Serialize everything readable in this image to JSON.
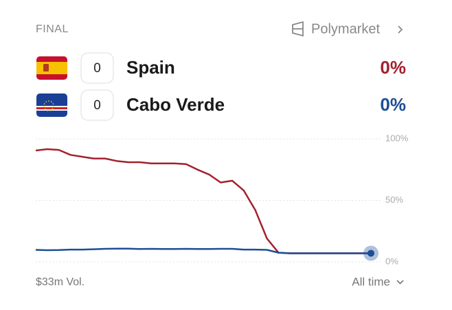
{
  "header": {
    "status": "FINAL",
    "source": "Polymarket"
  },
  "teams": [
    {
      "name": "Spain",
      "score": "0",
      "chance": "0%"
    },
    {
      "name": "Cabo Verde",
      "score": "0",
      "chance": "0%"
    }
  ],
  "chart_data": {
    "type": "line",
    "series": [
      {
        "name": "Spain",
        "color": "#a4202e",
        "values": [
          90.5,
          91.6,
          91,
          87,
          85.5,
          84,
          84,
          82,
          81,
          81,
          80,
          80,
          80,
          79.5,
          75,
          71,
          64.5,
          66,
          58,
          42,
          19,
          7.5,
          7,
          7,
          7,
          7,
          7,
          7,
          7,
          7
        ]
      },
      {
        "name": "Cabo Verde",
        "color": "#1c4e96",
        "values": [
          9.8,
          9.5,
          9.6,
          10,
          10,
          10.3,
          10.6,
          10.8,
          10.8,
          10.5,
          10.6,
          10.5,
          10.5,
          10.6,
          10.5,
          10.5,
          10.6,
          10.6,
          10,
          10,
          9.8,
          7.5,
          7,
          7,
          7,
          7,
          7,
          7,
          7,
          7
        ]
      }
    ],
    "ylim": [
      0,
      100
    ],
    "yticks": [
      {
        "value": 0,
        "label": "0%"
      },
      {
        "value": 50,
        "label": "50%"
      },
      {
        "value": 100,
        "label": "100%"
      }
    ],
    "grid": true
  },
  "footer": {
    "volume": "$33m Vol.",
    "range": "All time"
  }
}
